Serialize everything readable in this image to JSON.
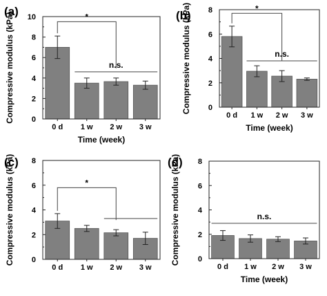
{
  "chart_data": [
    {
      "type": "bar",
      "panel": "(a)",
      "categories": [
        "0 d",
        "1 w",
        "2 w",
        "3 w"
      ],
      "values": [
        7.0,
        3.5,
        3.65,
        3.3
      ],
      "errors": [
        1.1,
        0.5,
        0.35,
        0.4
      ],
      "ylim": [
        0,
        10
      ],
      "yticks": [
        0,
        2,
        4,
        6,
        8,
        10
      ],
      "xlabel": "Time (week)",
      "ylabel": "Compressive modulus (kPa)",
      "bar_color": "#808080",
      "annotations": {
        "star": {
          "label": "*",
          "from": 0,
          "to": 2,
          "y": 9.5
        },
        "ns": {
          "label": "n.s.",
          "from": 1,
          "to": 3,
          "y": 4.6
        }
      }
    },
    {
      "type": "bar",
      "panel": "(b)",
      "categories": [
        "0 d",
        "1 w",
        "2 w",
        "3 w"
      ],
      "values": [
        5.8,
        2.95,
        2.55,
        2.3
      ],
      "errors": [
        0.85,
        0.45,
        0.45,
        0.1
      ],
      "ylim": [
        0,
        8
      ],
      "yticks": [
        0,
        2,
        4,
        6,
        8
      ],
      "xlabel": "Time (week)",
      "ylabel": "Compressive modulus (kPa)",
      "bar_color": "#808080",
      "annotations": {
        "star": {
          "label": "*",
          "from": 0,
          "to": 2,
          "y": 7.7
        },
        "ns": {
          "label": "n.s.",
          "from": 1,
          "to": 3,
          "y": 3.8
        }
      }
    },
    {
      "type": "bar",
      "panel": "(c)",
      "categories": [
        "0 d",
        "1 w",
        "2 w",
        "3 w"
      ],
      "values": [
        3.1,
        2.5,
        2.15,
        1.7
      ],
      "errors": [
        0.6,
        0.25,
        0.25,
        0.5
      ],
      "ylim": [
        0,
        8
      ],
      "yticks": [
        0,
        2,
        4,
        6,
        8
      ],
      "xlabel": "",
      "ylabel": "Compressive modulus (kPa)",
      "bar_color": "#808080",
      "annotations": {
        "star": {
          "label": "*",
          "from": 0,
          "to": 2,
          "y": 5.8
        },
        "ns": {
          "label": "",
          "from": 2,
          "to": 3,
          "y": 3.3
        }
      }
    },
    {
      "type": "bar",
      "panel": "(d)",
      "categories": [
        "0 d",
        "1 w",
        "2 w",
        "3 w"
      ],
      "values": [
        1.9,
        1.65,
        1.6,
        1.45
      ],
      "errors": [
        0.4,
        0.3,
        0.2,
        0.25
      ],
      "ylim": [
        0,
        8
      ],
      "yticks": [
        0,
        2,
        4,
        6,
        8
      ],
      "xlabel": "Time (week)",
      "ylabel": "Compressive modulus (kPa)",
      "bar_color": "#808080",
      "annotations": {
        "ns": {
          "label": "n.s.",
          "from": 0,
          "to": 3,
          "y": 2.9
        }
      }
    }
  ]
}
